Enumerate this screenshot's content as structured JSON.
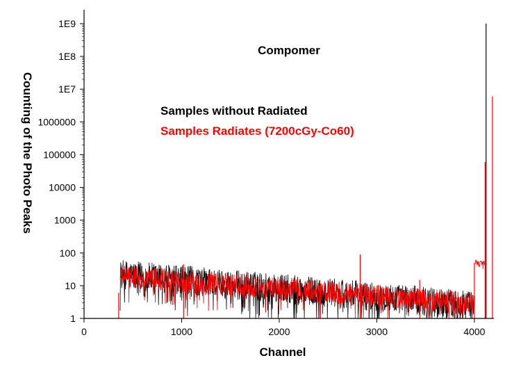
{
  "chart_data": {
    "type": "line",
    "title": "Compomer",
    "xlabel": "Channel",
    "ylabel": "Counting of the Photo Peaks",
    "xlim": [
      0,
      4200
    ],
    "ylim": [
      1,
      1000000000
    ],
    "y_scale": "log",
    "grid": false,
    "x_ticks": [
      0,
      1000,
      2000,
      3000,
      4000
    ],
    "x_tick_labels": [
      "0",
      "1000",
      "2000",
      "3000",
      "4000"
    ],
    "y_ticks": [
      1,
      10,
      100,
      1000,
      10000,
      100000,
      1000000,
      10000000,
      100000000,
      1000000000
    ],
    "y_tick_labels": [
      "1",
      "10",
      "100",
      "1000",
      "10000",
      "100000",
      "1000000",
      "1E7",
      "1E8",
      "1E9"
    ],
    "legend_position": "upper-left",
    "series": [
      {
        "name": "Samples without Radiated",
        "color": "#000000",
        "segments": [
          {
            "x_start": 370,
            "x_end": 4000,
            "y_start": 22,
            "y_end": 2.5,
            "noise_decades": 0.45,
            "floor": 1
          }
        ],
        "spikes": [
          {
            "x": 4120,
            "y": 1000000000
          }
        ]
      },
      {
        "name": "Samples Radiates (7200cGy-Co60)",
        "color": "#ff0000",
        "segments": [
          {
            "x_start": 370,
            "x_end": 3990,
            "y_start": 20,
            "y_end": 2.8,
            "noise_decades": 0.35,
            "floor": 1
          },
          {
            "x_start": 4010,
            "x_end": 4110,
            "y_start": 50,
            "y_end": 45,
            "noise_decades": 0.1,
            "floor": 30
          }
        ],
        "spikes": [
          {
            "x": 355,
            "y": 6
          },
          {
            "x": 1020,
            "y": 45
          },
          {
            "x": 2830,
            "y": 90
          },
          {
            "x": 3440,
            "y": 15
          },
          {
            "x": 4000,
            "y": 50
          },
          {
            "x": 4110,
            "y": 60000
          },
          {
            "x": 4185,
            "y": 6000000
          }
        ]
      }
    ]
  }
}
